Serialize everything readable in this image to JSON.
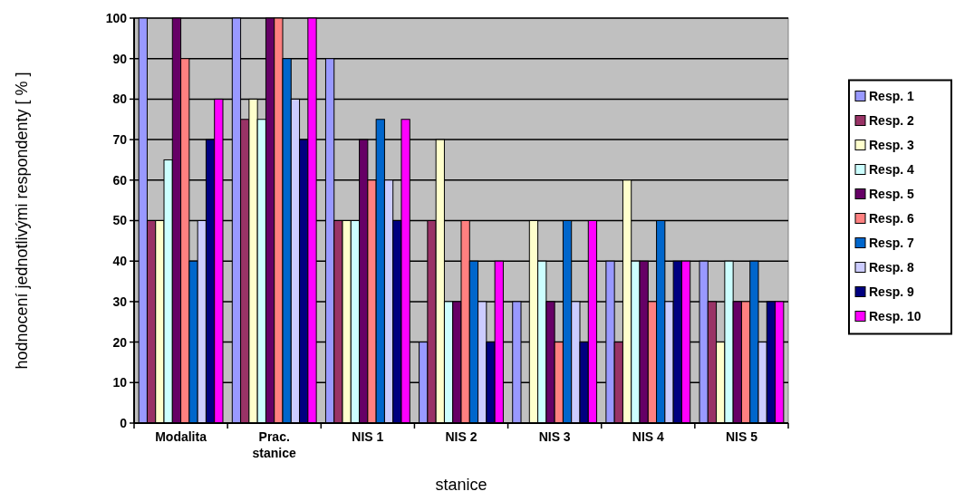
{
  "chart_data": {
    "type": "bar",
    "xlabel": "stanice",
    "ylabel": "hodnocení jednotlivými respondenty [ % ]",
    "categories": [
      "Modalita",
      "Prac. stanice",
      "NIS 1",
      "NIS 2",
      "NIS 3",
      "NIS 4",
      "NIS 5"
    ],
    "series": [
      {
        "name": "Resp. 1",
        "color": "#9999ff",
        "values": [
          100,
          100,
          90,
          20,
          30,
          40,
          40
        ]
      },
      {
        "name": "Resp. 2",
        "color": "#993366",
        "values": [
          50,
          75,
          50,
          50,
          0,
          20,
          30
        ]
      },
      {
        "name": "Resp. 3",
        "color": "#ffffcc",
        "values": [
          50,
          80,
          50,
          70,
          50,
          60,
          20
        ]
      },
      {
        "name": "Resp. 4",
        "color": "#ccffff",
        "values": [
          65,
          75,
          50,
          30,
          40,
          40,
          40
        ]
      },
      {
        "name": "Resp. 5",
        "color": "#660066",
        "values": [
          100,
          100,
          70,
          30,
          30,
          40,
          30
        ]
      },
      {
        "name": "Resp. 6",
        "color": "#ff8080",
        "values": [
          90,
          100,
          60,
          50,
          20,
          30,
          30
        ]
      },
      {
        "name": "Resp. 7",
        "color": "#0066cc",
        "values": [
          40,
          90,
          75,
          40,
          50,
          50,
          40
        ]
      },
      {
        "name": "Resp. 8",
        "color": "#ccccff",
        "values": [
          50,
          80,
          60,
          30,
          30,
          30,
          20
        ]
      },
      {
        "name": "Resp. 9",
        "color": "#000080",
        "values": [
          70,
          70,
          50,
          20,
          20,
          40,
          30
        ]
      },
      {
        "name": "Resp. 10",
        "color": "#ff00ff",
        "values": [
          80,
          100,
          75,
          40,
          50,
          40,
          30
        ]
      }
    ],
    "ylim": [
      0,
      100
    ],
    "yticks": [
      0,
      10,
      20,
      30,
      40,
      50,
      60,
      70,
      80,
      90,
      100
    ],
    "grid": "y",
    "legend": "right"
  }
}
